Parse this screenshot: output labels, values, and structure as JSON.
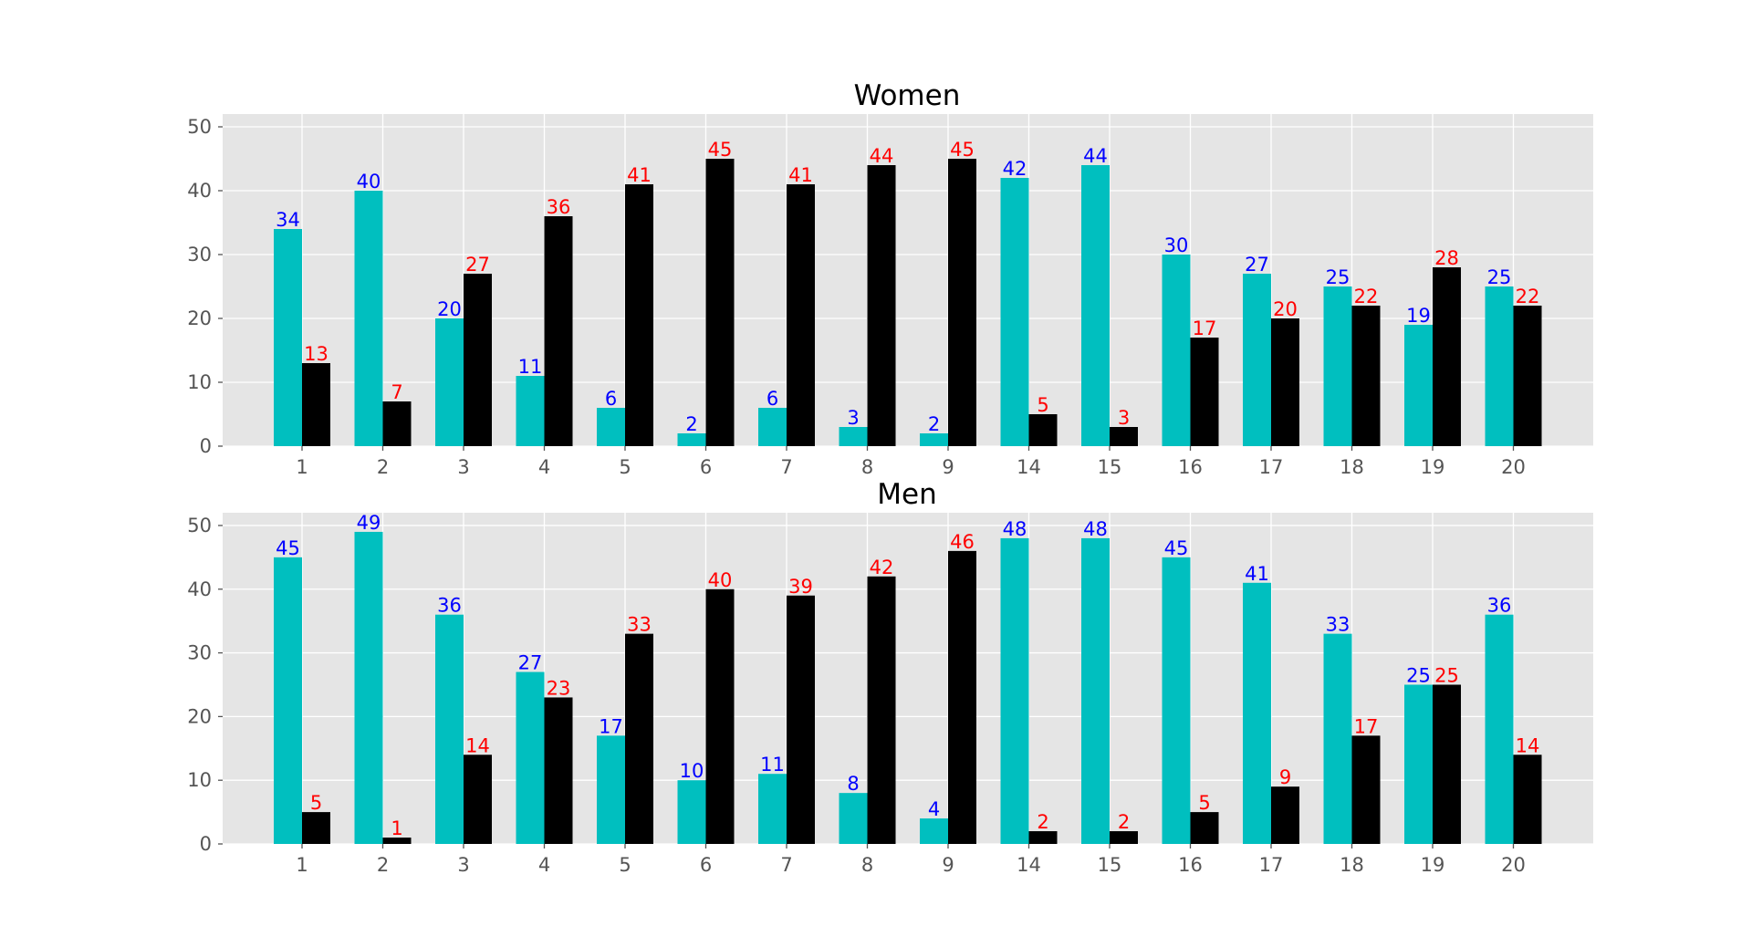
{
  "chart_data": [
    {
      "type": "bar",
      "title": "Women",
      "categories": [
        "1",
        "2",
        "3",
        "4",
        "5",
        "6",
        "7",
        "8",
        "9",
        "14",
        "15",
        "16",
        "17",
        "18",
        "19",
        "20"
      ],
      "series": [
        {
          "values": [
            34,
            40,
            20,
            11,
            6,
            2,
            6,
            3,
            2,
            42,
            44,
            30,
            27,
            25,
            19,
            25
          ],
          "color": "#00bfbf",
          "label_color": "#0000ff"
        },
        {
          "values": [
            13,
            7,
            27,
            36,
            41,
            45,
            41,
            44,
            45,
            5,
            3,
            17,
            20,
            22,
            28,
            22
          ],
          "color": "#000000",
          "label_color": "#ff0000"
        }
      ],
      "yticks": [
        0,
        10,
        20,
        30,
        40,
        50
      ],
      "ylim": [
        0,
        52
      ],
      "grid": true,
      "background": "#e5e5e5"
    },
    {
      "type": "bar",
      "title": "Men",
      "categories": [
        "1",
        "2",
        "3",
        "4",
        "5",
        "6",
        "7",
        "8",
        "9",
        "14",
        "15",
        "16",
        "17",
        "18",
        "19",
        "20"
      ],
      "series": [
        {
          "values": [
            45,
            49,
            36,
            27,
            17,
            10,
            11,
            8,
            4,
            48,
            48,
            45,
            41,
            33,
            25,
            36
          ],
          "color": "#00bfbf",
          "label_color": "#0000ff"
        },
        {
          "values": [
            5,
            1,
            14,
            23,
            33,
            40,
            39,
            42,
            46,
            2,
            2,
            5,
            9,
            17,
            25,
            14
          ],
          "color": "#000000",
          "label_color": "#ff0000"
        }
      ],
      "yticks": [
        0,
        10,
        20,
        30,
        40,
        50
      ],
      "ylim": [
        0,
        52
      ],
      "grid": true,
      "background": "#e5e5e5"
    }
  ]
}
